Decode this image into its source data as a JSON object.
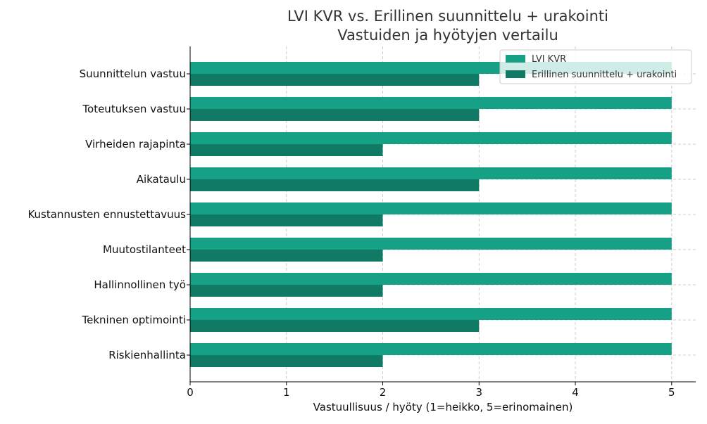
{
  "chart_data": {
    "type": "bar",
    "orientation": "horizontal",
    "title": [
      "LVI KVR vs. Erillinen suunnittelu + urakointi",
      "Vastuiden ja hyötyjen vertailu"
    ],
    "xlabel": "Vastuullisuus / hyöty (1=heikko, 5=erinomainen)",
    "ylabel": "",
    "xlim": [
      0,
      5.25
    ],
    "xticks": [
      0,
      1,
      2,
      3,
      4,
      5
    ],
    "grid": true,
    "legend_position": "top-right",
    "categories": [
      "Suunnittelun vastuu",
      "Toteutuksen vastuu",
      "Virheiden rajapinta",
      "Aikataulu",
      "Kustannusten ennustettavuus",
      "Muutostilanteet",
      "Hallinnollinen työ",
      "Tekninen optimointi",
      "Riskienhallinta"
    ],
    "series": [
      {
        "name": "LVI KVR",
        "color": "#16a085",
        "values": [
          5,
          5,
          5,
          5,
          5,
          5,
          5,
          5,
          5
        ]
      },
      {
        "name": "Erillinen suunnittelu + urakointi",
        "color": "#117a65",
        "values": [
          3,
          3,
          2,
          3,
          2,
          2,
          2,
          3,
          2
        ]
      }
    ]
  }
}
